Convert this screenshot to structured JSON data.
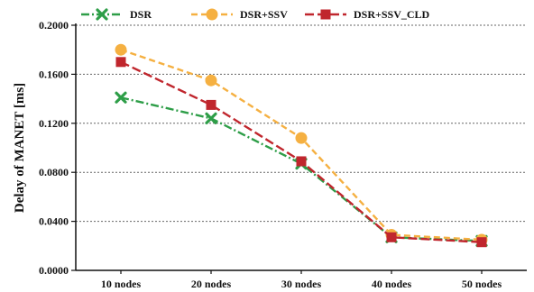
{
  "chart_data": {
    "type": "line",
    "categories": [
      "10 nodes",
      "20 nodes",
      "30 nodes",
      "40 nodes",
      "50 nodes"
    ],
    "ylabel": "Delay of MANET [ms]",
    "xlabel": "",
    "ylim": [
      0,
      0.2
    ],
    "yticks": [
      "0.0000",
      "0.0400",
      "0.0800",
      "0.1200",
      "0.1600",
      "0.2000"
    ],
    "grid": "horizontal-dotted",
    "legend": "top",
    "series": [
      {
        "name": "DSR",
        "values": [
          0.141,
          0.124,
          0.087,
          0.027,
          0.024
        ],
        "color": "#2e9e48",
        "marker": "x",
        "dash": "dash-dot"
      },
      {
        "name": "DSR+SSV",
        "values": [
          0.18,
          0.155,
          0.108,
          0.029,
          0.025
        ],
        "color": "#f5b041",
        "marker": "circle",
        "dash": "dashed"
      },
      {
        "name": "DSR+SSV_CLD",
        "values": [
          0.17,
          0.135,
          0.089,
          0.027,
          0.023
        ],
        "color": "#c0262d",
        "marker": "square",
        "dash": "long-dash"
      }
    ]
  }
}
